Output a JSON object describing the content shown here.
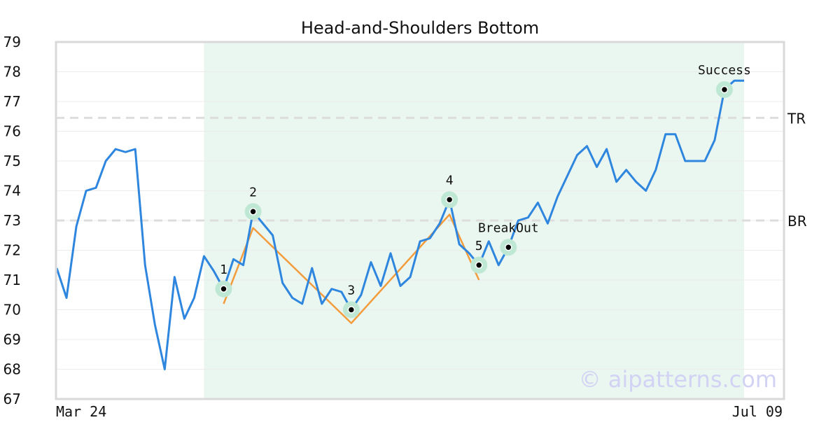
{
  "chart_data": {
    "type": "line",
    "title": "Head-and-Shoulders Bottom",
    "ylim": [
      67,
      79
    ],
    "yticks": [
      67,
      68,
      69,
      70,
      71,
      72,
      73,
      74,
      75,
      76,
      77,
      78,
      79
    ],
    "x_labels": [
      "Mar 24",
      "Jul 09"
    ],
    "grid": true,
    "watermark": "© aipatterns.com",
    "colors": {
      "price": "#2e86de",
      "pattern": "#f39c3c",
      "highlight": "#eaf6f0",
      "marker_halo": "#bfe8d4",
      "level_line": "#dddddd"
    },
    "series": [
      {
        "values": [
          71.4,
          70.4,
          72.8,
          74.0,
          74.1,
          75.0,
          75.4,
          75.3,
          75.4,
          71.5,
          69.5,
          68.0,
          71.1,
          69.7,
          70.4,
          71.8,
          71.3,
          70.7,
          71.7,
          71.5,
          73.3,
          72.9,
          72.5,
          70.9,
          70.4,
          70.2,
          71.4,
          70.2,
          70.7,
          70.6,
          70.0,
          70.5,
          71.6,
          70.8,
          71.9,
          70.8,
          71.1,
          72.3,
          72.4,
          72.9,
          73.7,
          72.2,
          71.9,
          71.5,
          72.3,
          71.5,
          72.1,
          73.0,
          73.1,
          73.6,
          72.9,
          73.8,
          74.5,
          75.2,
          75.5,
          74.8,
          75.4,
          74.3,
          74.7,
          74.3,
          74.0,
          74.7,
          75.9,
          75.9,
          75.0,
          75.0,
          75.0,
          75.7,
          77.4,
          77.7,
          77.7
        ]
      }
    ],
    "highlight_range": [
      15,
      70
    ],
    "levels": [
      {
        "label": "TR",
        "value": 76.45
      },
      {
        "label": "BR",
        "value": 73.0
      }
    ],
    "pattern_line": [
      {
        "x": 17,
        "y": 70.2
      },
      {
        "x": 20,
        "y": 72.75
      },
      {
        "x": 30,
        "y": 69.55
      },
      {
        "x": 40,
        "y": 73.2
      },
      {
        "x": 43,
        "y": 71.0
      }
    ],
    "markers": [
      {
        "label": "1",
        "x": 17,
        "y": 70.7
      },
      {
        "label": "2",
        "x": 20,
        "y": 73.3
      },
      {
        "label": "3",
        "x": 30,
        "y": 70.0
      },
      {
        "label": "4",
        "x": 40,
        "y": 73.7
      },
      {
        "label": "5",
        "x": 43,
        "y": 71.5
      },
      {
        "label": "BreakOut",
        "x": 46,
        "y": 72.1
      },
      {
        "label": "Success",
        "x": 68,
        "y": 77.4
      }
    ]
  }
}
